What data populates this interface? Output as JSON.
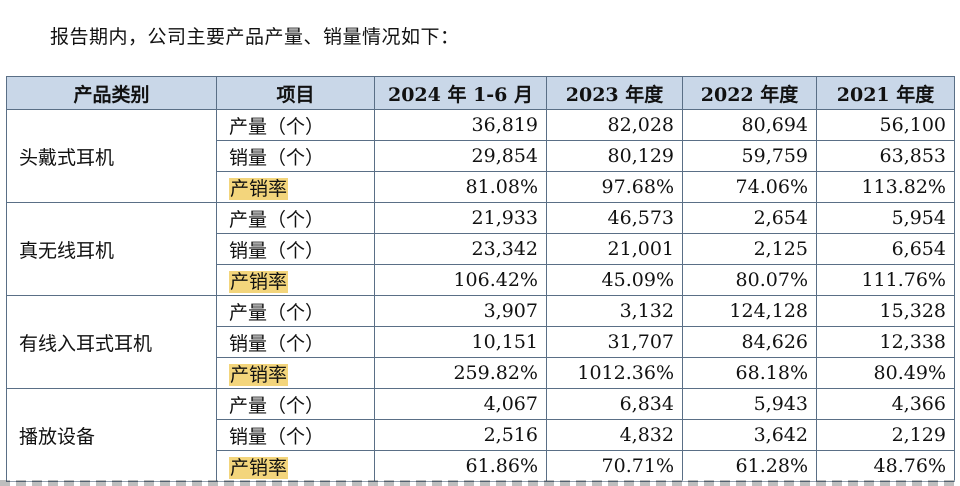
{
  "intro": "报告期内，公司主要产品产量、销量情况如下：",
  "table": {
    "headers": [
      "产品类别",
      "项目",
      "2024 年 1-6 月",
      "2023 年度",
      "2022 年度",
      "2021 年度"
    ],
    "groups": [
      {
        "category": "头戴式耳机",
        "rows": [
          {
            "item": "产量（个）",
            "values": [
              "36,819",
              "82,028",
              "80,694",
              "56,100"
            ]
          },
          {
            "item": "销量（个）",
            "values": [
              "29,854",
              "80,129",
              "59,759",
              "63,853"
            ]
          },
          {
            "item": "产销率",
            "values": [
              "81.08%",
              "97.68%",
              "74.06%",
              "113.82%"
            ]
          }
        ]
      },
      {
        "category": "真无线耳机",
        "rows": [
          {
            "item": "产量（个）",
            "values": [
              "21,933",
              "46,573",
              "2,654",
              "5,954"
            ]
          },
          {
            "item": "销量（个）",
            "values": [
              "23,342",
              "21,001",
              "2,125",
              "6,654"
            ]
          },
          {
            "item": "产销率",
            "values": [
              "106.42%",
              "45.09%",
              "80.07%",
              "111.76%"
            ]
          }
        ]
      },
      {
        "category": "有线入耳式耳机",
        "rows": [
          {
            "item": "产量（个）",
            "values": [
              "3,907",
              "3,132",
              "124,128",
              "15,328"
            ]
          },
          {
            "item": "销量（个）",
            "values": [
              "10,151",
              "31,707",
              "84,626",
              "12,338"
            ]
          },
          {
            "item": "产销率",
            "values": [
              "259.82%",
              "1012.36%",
              "68.18%",
              "80.49%"
            ]
          }
        ]
      },
      {
        "category": "播放设备",
        "rows": [
          {
            "item": "产量（个）",
            "values": [
              "4,067",
              "6,834",
              "5,943",
              "4,366"
            ]
          },
          {
            "item": "销量（个）",
            "values": [
              "2,516",
              "4,832",
              "3,642",
              "2,129"
            ]
          },
          {
            "item": "产销率",
            "values": [
              "61.86%",
              "70.71%",
              "61.28%",
              "48.76%"
            ]
          }
        ]
      }
    ]
  },
  "colors": {
    "header_bg": "#c9d7e8",
    "highlight": "#f3d57c",
    "border": "#5a6f86"
  }
}
